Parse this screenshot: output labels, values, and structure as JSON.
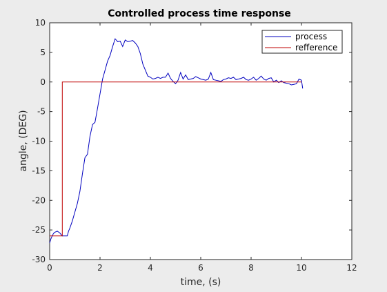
{
  "chart_data": {
    "type": "line",
    "title": "Controlled process time response",
    "xlabel": "time, (s)",
    "ylabel": "angle, (DEG)",
    "xlim": [
      0,
      12
    ],
    "ylim": [
      -30,
      10
    ],
    "xticks": [
      "0",
      "2",
      "4",
      "6",
      "8",
      "10",
      "12"
    ],
    "yticks": [
      "10",
      "5",
      "0",
      "-5",
      "-10",
      "-15",
      "-20",
      "-25",
      "-30"
    ],
    "grid": false,
    "legend_position": "top-right",
    "series": [
      {
        "name": "process",
        "color": "#0000bf",
        "x": [
          0,
          0.05,
          0.1,
          0.15,
          0.2,
          0.3,
          0.4,
          0.5,
          0.6,
          0.7,
          0.75,
          0.8,
          0.9,
          1.0,
          1.1,
          1.2,
          1.3,
          1.4,
          1.5,
          1.6,
          1.7,
          1.8,
          1.9,
          2.0,
          2.1,
          2.2,
          2.3,
          2.4,
          2.5,
          2.6,
          2.7,
          2.8,
          2.9,
          3.0,
          3.1,
          3.2,
          3.3,
          3.4,
          3.5,
          3.6,
          3.7,
          3.8,
          3.9,
          4.0,
          4.1,
          4.2,
          4.3,
          4.4,
          4.5,
          4.6,
          4.7,
          4.8,
          4.9,
          5.0,
          5.1,
          5.2,
          5.3,
          5.4,
          5.5,
          5.6,
          5.7,
          5.8,
          5.9,
          6.0,
          6.1,
          6.2,
          6.3,
          6.4,
          6.5,
          6.6,
          6.7,
          6.8,
          6.9,
          7.0,
          7.1,
          7.2,
          7.3,
          7.4,
          7.5,
          7.6,
          7.7,
          7.8,
          7.9,
          8.0,
          8.1,
          8.2,
          8.3,
          8.4,
          8.5,
          8.6,
          8.7,
          8.8,
          8.9,
          9.0,
          9.1,
          9.2,
          9.3,
          9.4,
          9.5,
          9.6,
          9.7,
          9.8,
          9.9,
          10.0,
          10.05
        ],
        "values": [
          -27.2,
          -26.5,
          -26.0,
          -25.6,
          -25.4,
          -25.2,
          -25.5,
          -26.0,
          -26.0,
          -26.0,
          -25.2,
          -24.7,
          -23.5,
          -22.0,
          -20.5,
          -18.5,
          -15.5,
          -12.8,
          -12.2,
          -9.2,
          -7.2,
          -6.8,
          -4.5,
          -2.0,
          0.5,
          2.0,
          3.5,
          4.5,
          6.0,
          7.3,
          6.8,
          6.9,
          6.0,
          7.1,
          6.8,
          6.9,
          7.0,
          6.6,
          6.0,
          4.8,
          3.0,
          2.0,
          1.0,
          0.8,
          0.5,
          0.6,
          0.8,
          0.6,
          0.8,
          0.8,
          1.5,
          0.6,
          0.1,
          -0.3,
          0.3,
          1.6,
          0.5,
          1.2,
          0.4,
          0.5,
          0.6,
          0.9,
          0.7,
          0.5,
          0.4,
          0.3,
          0.5,
          1.6,
          0.4,
          0.3,
          0.2,
          0.1,
          0.4,
          0.5,
          0.7,
          0.6,
          0.8,
          0.4,
          0.5,
          0.6,
          0.8,
          0.4,
          0.3,
          0.5,
          0.8,
          0.3,
          0.6,
          1.0,
          0.5,
          0.3,
          0.6,
          0.7,
          0.0,
          0.3,
          -0.1,
          0.2,
          -0.1,
          -0.2,
          -0.3,
          -0.5,
          -0.4,
          -0.3,
          0.5,
          0.3,
          -1.1
        ]
      },
      {
        "name": "refference",
        "color": "#bf0000",
        "x": [
          0,
          0.5,
          0.5,
          10
        ],
        "values": [
          -26,
          -26,
          0,
          0
        ]
      }
    ]
  }
}
